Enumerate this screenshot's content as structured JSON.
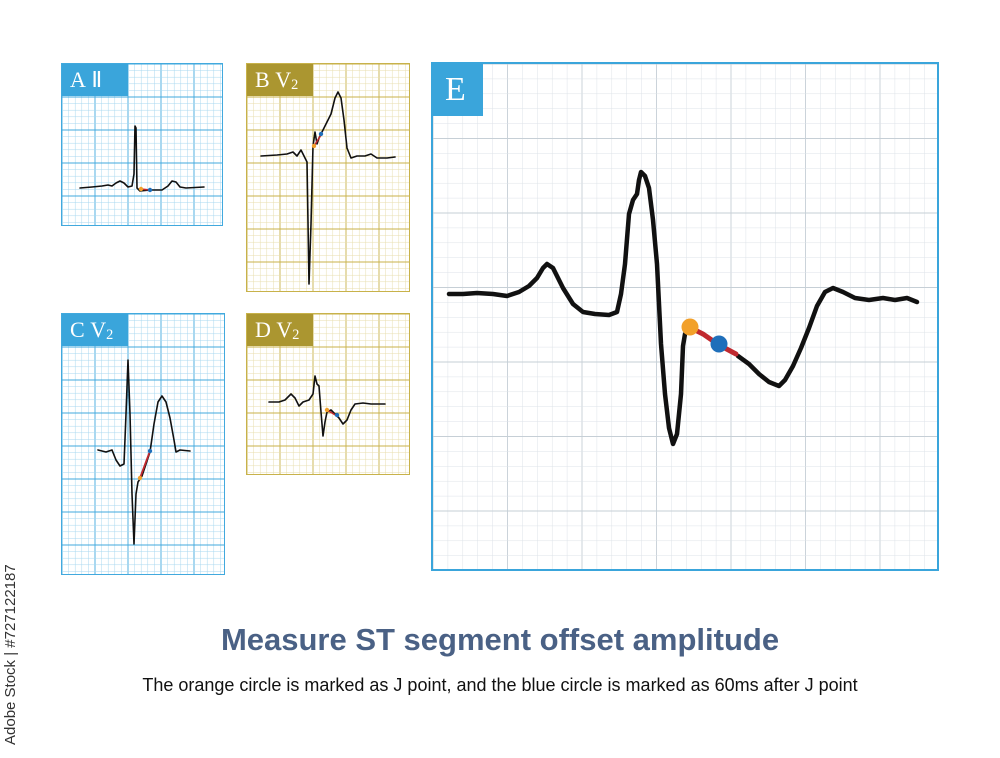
{
  "panels": {
    "a": {
      "letter": "A",
      "lead": "Ⅱ",
      "lead_sub": ""
    },
    "b": {
      "letter": "B",
      "lead": "V",
      "lead_sub": "2"
    },
    "c": {
      "letter": "C",
      "lead": "V",
      "lead_sub": "2"
    },
    "d": {
      "letter": "D",
      "lead": "V",
      "lead_sub": "2"
    },
    "e": {
      "letter": "E"
    }
  },
  "caption": {
    "title": "Measure ST segment offset amplitude",
    "subtitle": "The orange circle is marked as J point, and the blue circle is marked as 60ms after J point"
  },
  "stock_id": "Adobe Stock | #727122187",
  "colors": {
    "grid_blue": "#41a9de",
    "grid_gold": "#c8b24a",
    "label_blue": "#3aa5db",
    "label_gold": "#ab9630",
    "j_point": "#f2a02a",
    "j60_point": "#1f6fba",
    "st_segment": "#c0292f",
    "trace": "#111111"
  }
}
